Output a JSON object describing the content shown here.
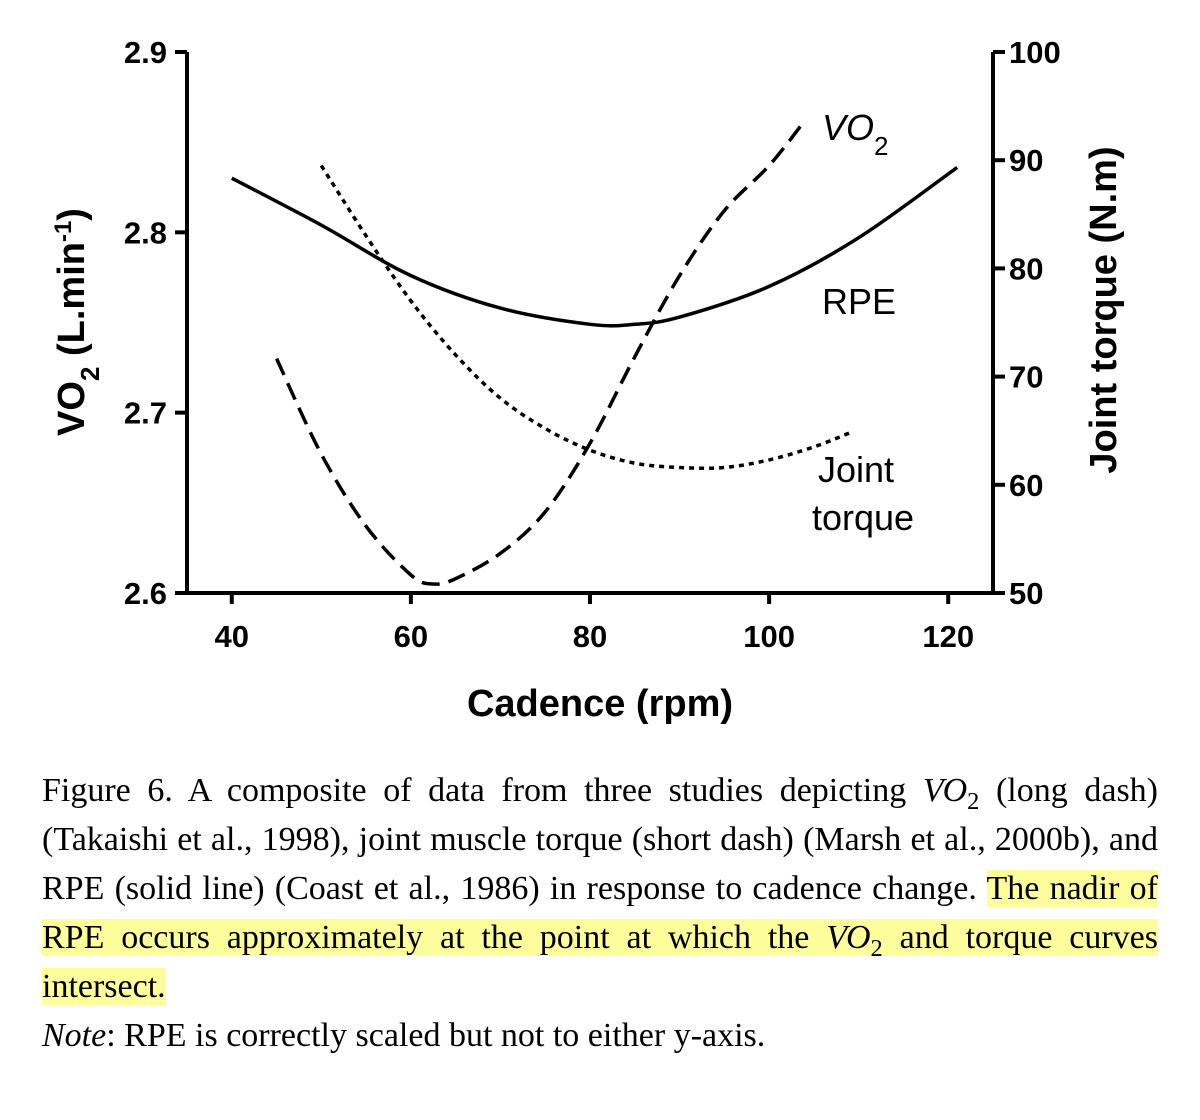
{
  "chart_data": {
    "type": "line",
    "xlabel": "Cadence (rpm)",
    "ylabel_left": "VO",
    "ylabel_left_sub": "2",
    "ylabel_left_unit": " (L.min",
    "ylabel_left_sup": "-1",
    "ylabel_left_close": ")",
    "ylabel_right": "Joint torque (N.m)",
    "xlim": [
      35,
      125
    ],
    "ylim_left": [
      2.6,
      2.9
    ],
    "ylim_right": [
      50,
      100
    ],
    "x_ticks": [
      "40",
      "60",
      "80",
      "100",
      "120"
    ],
    "y_left_ticks": [
      "2.6",
      "2.7",
      "2.8",
      "2.9"
    ],
    "y_right_ticks": [
      "50",
      "60",
      "70",
      "80",
      "90",
      "100"
    ],
    "series": [
      {
        "name": "VO2",
        "style": "long-dash",
        "axis": "left",
        "points": [
          [
            45,
            2.73
          ],
          [
            50,
            2.677
          ],
          [
            55,
            2.637
          ],
          [
            60,
            2.61
          ],
          [
            62.5,
            2.605
          ],
          [
            65,
            2.608
          ],
          [
            70,
            2.622
          ],
          [
            75,
            2.645
          ],
          [
            80,
            2.683
          ],
          [
            85,
            2.731
          ],
          [
            90,
            2.776
          ],
          [
            95,
            2.812
          ],
          [
            100,
            2.837
          ],
          [
            104,
            2.862
          ]
        ]
      },
      {
        "name": "Joint torque",
        "style": "short-dash",
        "axis": "right",
        "points": [
          [
            50,
            89.5
          ],
          [
            55,
            83.0
          ],
          [
            60,
            77.0
          ],
          [
            65,
            72.0
          ],
          [
            70,
            68.0
          ],
          [
            75,
            65.2
          ],
          [
            80,
            63.2
          ],
          [
            85,
            62.0
          ],
          [
            90,
            61.6
          ],
          [
            95,
            61.6
          ],
          [
            100,
            62.3
          ],
          [
            105,
            63.5
          ],
          [
            109,
            64.8
          ]
        ]
      },
      {
        "name": "RPE",
        "style": "solid",
        "axis": "left",
        "points": [
          [
            40,
            2.83
          ],
          [
            50,
            2.804
          ],
          [
            60,
            2.776
          ],
          [
            70,
            2.758
          ],
          [
            80,
            2.749
          ],
          [
            85,
            2.749
          ],
          [
            90,
            2.753
          ],
          [
            100,
            2.77
          ],
          [
            110,
            2.797
          ],
          [
            121,
            2.836
          ]
        ]
      }
    ],
    "curve_labels": {
      "vo2_main": "VO",
      "vo2_sub": "2",
      "rpe": "RPE",
      "torque_line1": "Joint",
      "torque_line2": "torque"
    }
  },
  "caption": {
    "p1": "Figure 6.  A composite of data from three studies depicting ",
    "p1_vo": "VO",
    "p1_sub": "2",
    "p1_rest": " (long dash) (Takaishi et al., 1998), joint muscle torque (short dash) (Marsh et al., 2000b), and RPE (solid line) (Coast et al., 1986) in response to cadence change. ",
    "hl1": "The nadir of RPE occurs approximately at the point at which the ",
    "hl_vo": "VO",
    "hl_sub": "2",
    "hl2": " and torque curves intersect.",
    "note_label": "Note",
    "note_text": ": RPE is correctly scaled but not to either y-axis."
  }
}
